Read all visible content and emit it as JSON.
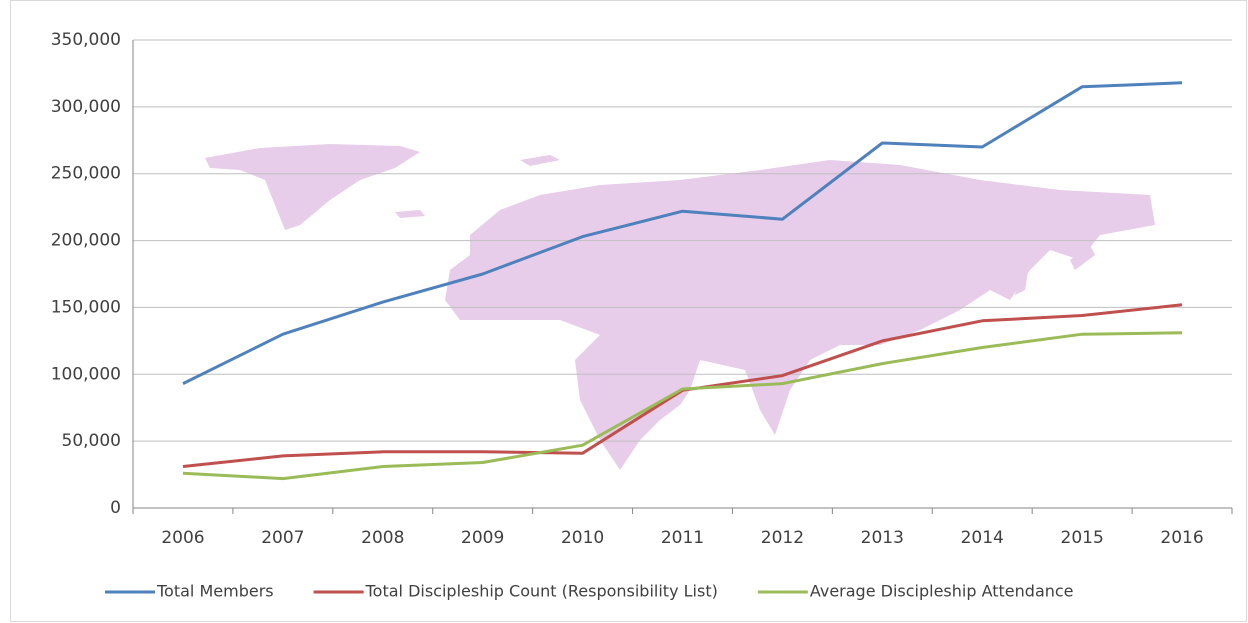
{
  "chart_data": {
    "type": "line",
    "categories": [
      "2006",
      "2007",
      "2008",
      "2009",
      "2010",
      "2011",
      "2012",
      "2013",
      "2014",
      "2015",
      "2016"
    ],
    "series": [
      {
        "name": "Total Members",
        "color": "#4f81bd",
        "values": [
          93000,
          130000,
          154000,
          175000,
          203000,
          222000,
          216000,
          273000,
          270000,
          315000,
          318000
        ]
      },
      {
        "name": "Total Discipleship Count (Responsibility List)",
        "color": "#c0504d",
        "values": [
          31000,
          39000,
          42000,
          42000,
          41000,
          88000,
          99000,
          125000,
          140000,
          144000,
          152000
        ]
      },
      {
        "name": "Average Discipleship Attendance",
        "color": "#9bbb59",
        "values": [
          26000,
          22000,
          31000,
          34000,
          47000,
          89000,
          93000,
          108000,
          120000,
          130000,
          131000
        ]
      }
    ],
    "ylim": [
      0,
      350000
    ],
    "yticks": [
      0,
      {
        "value": 50000,
        "label": "50,000"
      },
      {
        "value": 100000,
        "label": "100,000"
      },
      {
        "value": 150000,
        "label": "150,000"
      },
      {
        "value": 200000,
        "label": "200,000"
      },
      {
        "value": 250000,
        "label": "250,000"
      },
      {
        "value": 300000,
        "label": "300,000"
      },
      {
        "value": 350000,
        "label": "350,000"
      }
    ],
    "grid": true,
    "legend": "bottom"
  }
}
